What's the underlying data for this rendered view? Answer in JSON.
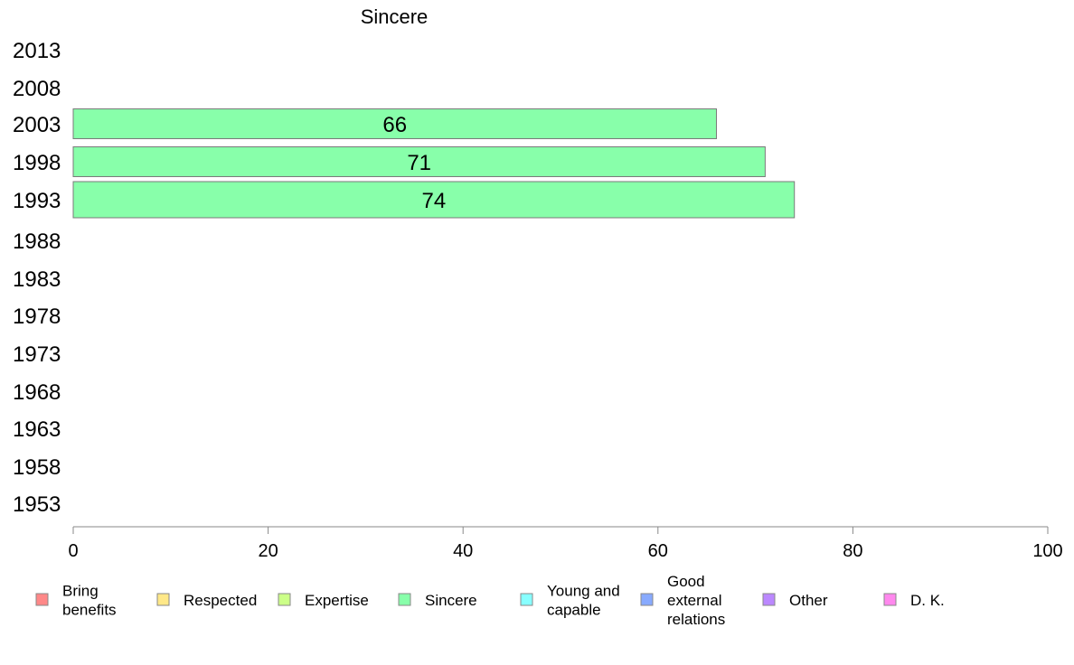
{
  "chart_data": {
    "type": "bar",
    "orientation": "horizontal",
    "title": "Sincere",
    "categories": [
      "2013",
      "2008",
      "2003",
      "1998",
      "1993",
      "1988",
      "1983",
      "1978",
      "1973",
      "1968",
      "1963",
      "1958",
      "1953"
    ],
    "series": [
      {
        "name": "Sincere",
        "color": "#88ffaa",
        "values": [
          null,
          null,
          66,
          71,
          74,
          null,
          null,
          null,
          null,
          null,
          null,
          null,
          null
        ]
      }
    ],
    "xlim": [
      0,
      100
    ],
    "xticks": [
      0,
      20,
      40,
      60,
      80,
      100
    ],
    "grid": false,
    "legend_position": "bottom",
    "legend": [
      {
        "label": "Bring benefits",
        "color": "#ff8888"
      },
      {
        "label": "Respected",
        "color": "#ffe888"
      },
      {
        "label": "Expertise",
        "color": "#ccff88"
      },
      {
        "label": "Sincere",
        "color": "#88ffaa"
      },
      {
        "label": "Young and capable",
        "color": "#88ffff"
      },
      {
        "label": "Good external relations",
        "color": "#88aaff"
      },
      {
        "label": "Other",
        "color": "#bb88ff"
      },
      {
        "label": "D. K.",
        "color": "#ff88ee"
      }
    ]
  }
}
